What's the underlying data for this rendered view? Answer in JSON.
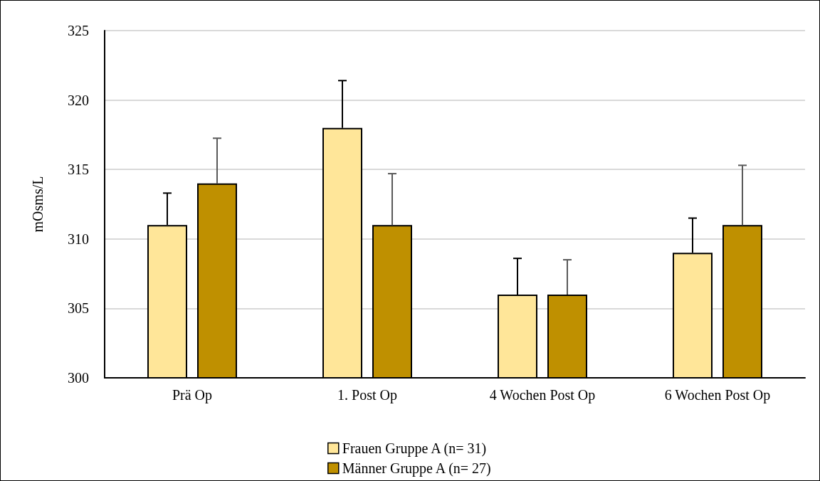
{
  "chart_data": {
    "type": "bar",
    "ylabel": "mOsms/L",
    "categories": [
      "Prä Op",
      "1. Post Op",
      "4 Wochen Post Op",
      "6 Wochen Post Op"
    ],
    "series": [
      {
        "name": "Frauen Gruppe A (n= 31)",
        "color": "#ffe699",
        "values": [
          311,
          318,
          306,
          309
        ],
        "errors": [
          [
            311,
            313.3
          ],
          [
            318,
            321.4
          ],
          [
            306,
            308.6
          ],
          [
            309,
            311.5
          ]
        ]
      },
      {
        "name": "Männer Gruppe A (n= 27)",
        "color": "#bf9000",
        "values": [
          314,
          311,
          306,
          311
        ],
        "errors": [
          [
            314,
            317.25
          ],
          [
            311,
            314.7
          ],
          [
            306,
            308.5
          ],
          [
            311,
            315.3
          ]
        ]
      }
    ],
    "ylim": [
      300,
      325
    ],
    "yticks": [
      300,
      305,
      310,
      315,
      320,
      325
    ],
    "grid": "y",
    "legend": "bottom"
  }
}
